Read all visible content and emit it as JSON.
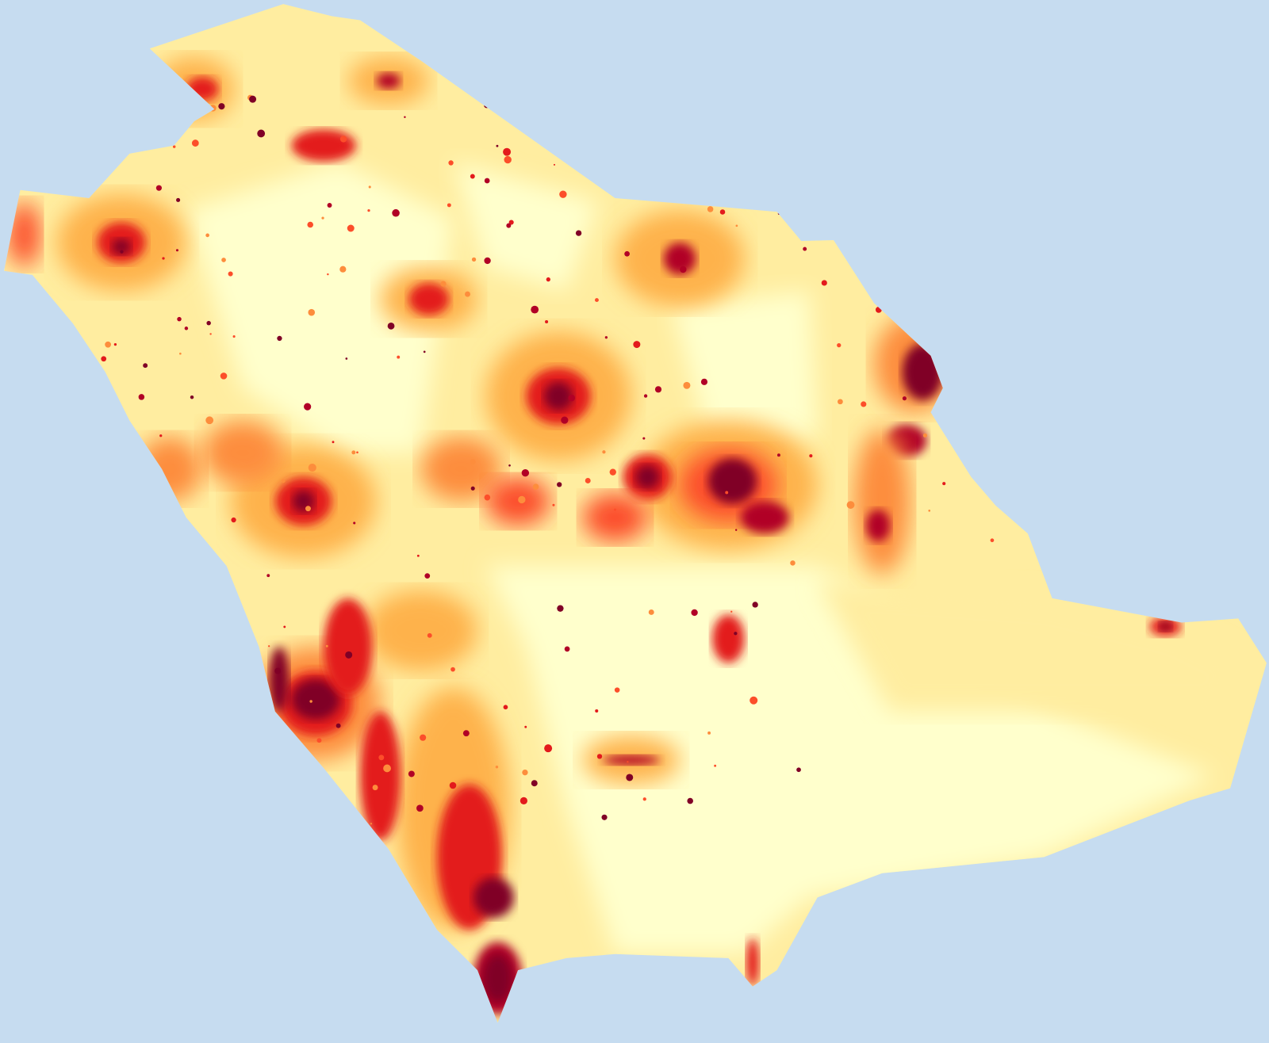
{
  "map": {
    "kind": "population density heatmap",
    "background_color": "#c6dcf0",
    "palette": [
      "#ffffcc",
      "#ffeda0",
      "#fed976",
      "#feb24c",
      "#fd8d3c",
      "#fc4e2a",
      "#e31a1c",
      "#b10026",
      "#800026"
    ]
  }
}
